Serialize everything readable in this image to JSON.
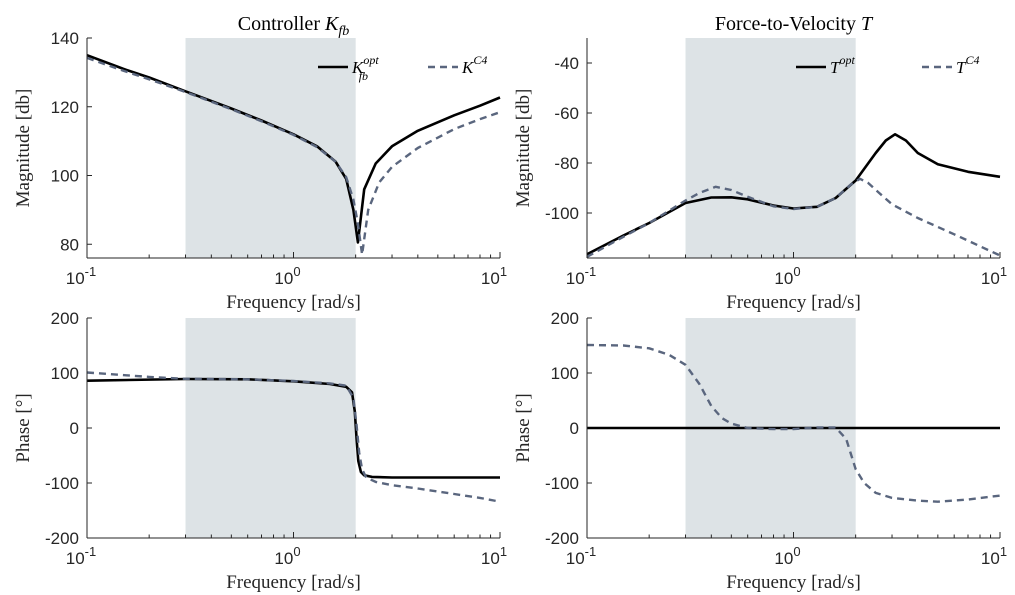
{
  "figure": {
    "colors": {
      "optimal": "#000000",
      "c4": "#5a667e",
      "band": "#dde3e6",
      "axis": "#262626"
    },
    "legend_placement": "top-right",
    "shaded_band_x": [
      0.3,
      2.0
    ]
  },
  "chart_data": [
    {
      "id": "mag_kfb",
      "type": "line",
      "title_main": "Controller ",
      "title_math": "K",
      "title_sub": "fb",
      "xlabel": "Frequency [rad/s]",
      "ylabel": "Magnitude [db]",
      "xscale": "log",
      "xlim": [
        0.1,
        10
      ],
      "ylim": [
        76,
        140
      ],
      "x_tick_labels": [
        {
          "base": "10",
          "exp": "-1"
        },
        {
          "base": "10",
          "exp": "0"
        },
        {
          "base": "10",
          "exp": "1"
        }
      ],
      "yticks": [
        80,
        100,
        120,
        140
      ],
      "legend": [
        {
          "main": "K",
          "sup": "opt",
          "sub": "fb",
          "style": "solid"
        },
        {
          "main": "K",
          "sup": "C4",
          "sub": "",
          "style": "dashed"
        }
      ],
      "series": [
        {
          "style": "solid",
          "x": [
            0.1,
            0.15,
            0.2,
            0.3,
            0.5,
            0.7,
            1.0,
            1.3,
            1.6,
            1.8,
            1.95,
            2.05,
            2.2,
            2.5,
            3.0,
            4.0,
            6.0,
            8.0,
            10.0
          ],
          "y": [
            135,
            131,
            128.5,
            124.5,
            119.5,
            116,
            112,
            108.5,
            104,
            99,
            90,
            80.5,
            96,
            103.5,
            108.5,
            113,
            117.5,
            120.3,
            122.7
          ]
        },
        {
          "style": "dashed",
          "x": [
            0.1,
            0.15,
            0.2,
            0.3,
            0.5,
            0.7,
            1.0,
            1.3,
            1.6,
            1.8,
            1.95,
            2.05,
            2.15,
            2.3,
            2.6,
            3.0,
            4.0,
            6.0,
            8.0,
            10.0
          ],
          "y": [
            134.2,
            130.5,
            128,
            124.3,
            119.3,
            115.8,
            111.8,
            108.3,
            104,
            99.5,
            93,
            86,
            77,
            90,
            98,
            102.5,
            108,
            113.5,
            116.4,
            118.4
          ]
        }
      ]
    },
    {
      "id": "mag_t",
      "type": "line",
      "title_main": "Force-to-Velocity ",
      "title_math": "T",
      "title_sub": "",
      "xlabel": "Frequency [rad/s]",
      "ylabel": "Magnitude [db]",
      "xscale": "log",
      "xlim": [
        0.1,
        10
      ],
      "ylim": [
        -118,
        -30
      ],
      "x_tick_labels": [
        {
          "base": "10",
          "exp": "-1"
        },
        {
          "base": "10",
          "exp": "0"
        },
        {
          "base": "10",
          "exp": "1"
        }
      ],
      "yticks": [
        -100,
        -80,
        -60,
        -40
      ],
      "legend": [
        {
          "main": "T",
          "sup": "opt",
          "sub": "",
          "style": "solid"
        },
        {
          "main": "T",
          "sup": "C4",
          "sub": "",
          "style": "dashed"
        }
      ],
      "series": [
        {
          "style": "solid",
          "x": [
            0.1,
            0.15,
            0.2,
            0.3,
            0.4,
            0.5,
            0.6,
            0.8,
            1.0,
            1.3,
            1.6,
            2.0,
            2.5,
            2.8,
            3.1,
            3.5,
            4.0,
            5.0,
            7.0,
            10.0
          ],
          "y": [
            -116.5,
            -109,
            -104,
            -96,
            -93.8,
            -93.7,
            -94.5,
            -97,
            -98.2,
            -97.5,
            -94,
            -87,
            -76,
            -71,
            -68.5,
            -71,
            -76,
            -80.5,
            -83.5,
            -85.5
          ]
        },
        {
          "style": "dashed",
          "x": [
            0.1,
            0.15,
            0.2,
            0.3,
            0.35,
            0.42,
            0.5,
            0.6,
            0.8,
            1.0,
            1.3,
            1.6,
            1.9,
            2.1,
            2.3,
            2.6,
            3.0,
            4.0,
            6.0,
            10.0
          ],
          "y": [
            -117.5,
            -109.5,
            -104,
            -95,
            -92,
            -89.5,
            -90.8,
            -93.5,
            -97.3,
            -98.4,
            -97.5,
            -94,
            -88.5,
            -86.3,
            -88,
            -92,
            -96.5,
            -102,
            -108.5,
            -117
          ]
        }
      ]
    },
    {
      "id": "ph_kfb",
      "type": "line",
      "xlabel": "Frequency [rad/s]",
      "ylabel": "Phase [°]",
      "xscale": "log",
      "xlim": [
        0.1,
        10
      ],
      "ylim": [
        -200,
        200
      ],
      "x_tick_labels": [
        {
          "base": "10",
          "exp": "-1"
        },
        {
          "base": "10",
          "exp": "0"
        },
        {
          "base": "10",
          "exp": "1"
        }
      ],
      "yticks": [
        -200,
        -100,
        0,
        100,
        200
      ],
      "series": [
        {
          "style": "solid",
          "x": [
            0.1,
            0.3,
            0.6,
            1.0,
            1.5,
            1.8,
            1.92,
            1.98,
            2.02,
            2.06,
            2.12,
            2.2,
            2.4,
            3.0,
            5.0,
            10.0
          ],
          "y": [
            86,
            89,
            88.5,
            85,
            80,
            75,
            65,
            30,
            -20,
            -60,
            -80,
            -86,
            -89,
            -90,
            -90,
            -90
          ]
        },
        {
          "style": "dashed",
          "x": [
            0.1,
            0.2,
            0.3,
            0.6,
            1.0,
            1.5,
            1.8,
            1.95,
            2.02,
            2.08,
            2.15,
            2.25,
            2.5,
            3.0,
            4.0,
            6.0,
            8.0,
            10.0
          ],
          "y": [
            101,
            93,
            89.5,
            88.5,
            85.5,
            81,
            77,
            55,
            5,
            -45,
            -75,
            -90,
            -98,
            -104,
            -110,
            -120,
            -127,
            -134
          ]
        }
      ]
    },
    {
      "id": "ph_t",
      "type": "line",
      "xlabel": "Frequency [rad/s]",
      "ylabel": "Phase [°]",
      "xscale": "log",
      "xlim": [
        0.1,
        10
      ],
      "ylim": [
        -200,
        200
      ],
      "x_tick_labels": [
        {
          "base": "10",
          "exp": "-1"
        },
        {
          "base": "10",
          "exp": "0"
        },
        {
          "base": "10",
          "exp": "1"
        }
      ],
      "yticks": [
        -200,
        -100,
        0,
        100,
        200
      ],
      "series": [
        {
          "style": "solid",
          "x": [
            0.1,
            10.0
          ],
          "y": [
            0,
            0
          ]
        },
        {
          "style": "dashed",
          "x": [
            0.1,
            0.15,
            0.2,
            0.25,
            0.3,
            0.35,
            0.4,
            0.45,
            0.5,
            0.6,
            0.8,
            1.0,
            1.3,
            1.6,
            1.8,
            2.0,
            2.2,
            2.5,
            3.0,
            4.0,
            5.0,
            7.0,
            10.0
          ],
          "y": [
            151,
            150,
            145,
            133,
            115,
            80,
            40,
            18,
            8,
            0,
            -2,
            -2,
            1,
            1,
            -20,
            -75,
            -100,
            -118,
            -127,
            -132,
            -134,
            -130,
            -123
          ]
        }
      ]
    }
  ]
}
